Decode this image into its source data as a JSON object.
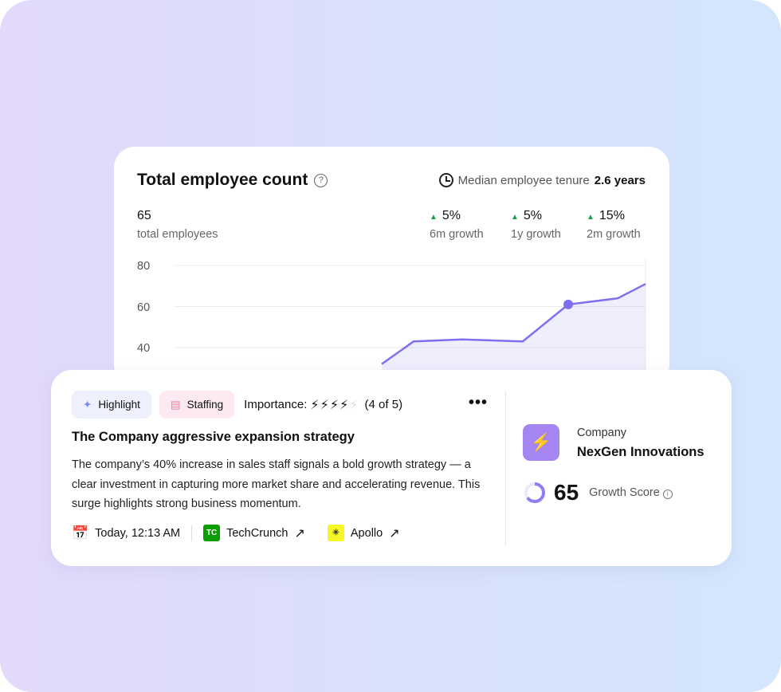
{
  "employee_card": {
    "title": "Total employee count",
    "help_icon": "question-circle-icon",
    "tenure_label": "Median employee tenure",
    "tenure_value": "2.6 years",
    "total": "65",
    "total_label": "total employees",
    "growth": [
      {
        "value": "5%",
        "label": "6m growth"
      },
      {
        "value": "5%",
        "label": "1y growth"
      },
      {
        "value": "15%",
        "label": "2m growth"
      }
    ],
    "growth_color": "#16a34a"
  },
  "chart_data": {
    "type": "area",
    "yticks": [
      "80",
      "60",
      "40"
    ],
    "ylim_visible": [
      40,
      80
    ],
    "grid": true,
    "series": [
      {
        "values": [
          32,
          43,
          44,
          43,
          61,
          64,
          71
        ],
        "highlight_index": 4
      }
    ],
    "line_color": "#7c70f0"
  },
  "insight": {
    "tags": [
      {
        "label": "Highlight",
        "icon": "sparkle-icon"
      },
      {
        "label": "Staffing",
        "icon": "archive-box-icon"
      }
    ],
    "importance_label": "Importance:",
    "importance_value": 4,
    "importance_max": 5,
    "importance_text": "(4 of 5)",
    "headline": "The Company aggressive expansion strategy",
    "body": "The company’s 40% increase in sales staff signals a bold growth strategy — a clear investment in capturing more market share and accelerating revenue. This surge highlights strong business momentum.",
    "timestamp": "Today, 12:13 AM",
    "sources": [
      {
        "name": "TechCrunch",
        "logo_text": "TC",
        "color": "#0a9e01"
      },
      {
        "name": "Apollo",
        "logo_text": "✳",
        "color": "#f5f52a"
      }
    ]
  },
  "company": {
    "label": "Company",
    "name": "NexGen Innovations",
    "score": "65",
    "score_fraction": 0.65,
    "score_label": "Growth Score",
    "accent": "#a585f0"
  }
}
